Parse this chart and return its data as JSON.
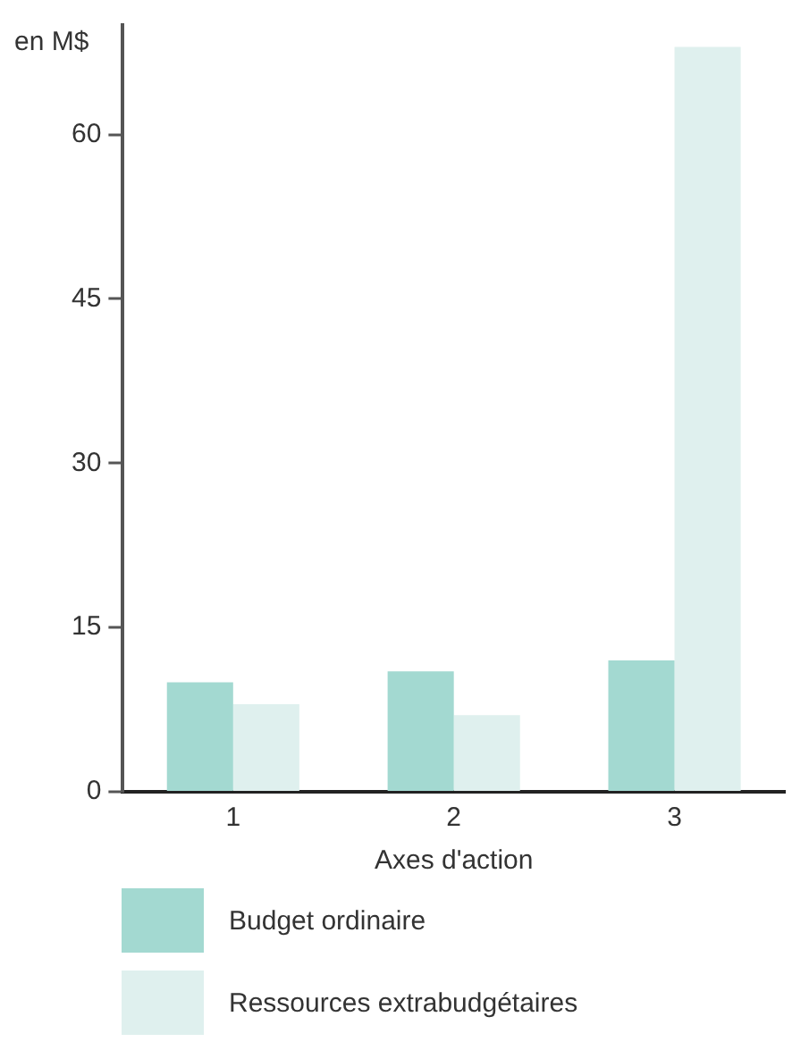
{
  "chart_data": {
    "type": "bar",
    "ylabel": "en M$",
    "xlabel": "Axes d'action",
    "categories": [
      "1",
      "2",
      "3"
    ],
    "series": [
      {
        "name": "Budget ordinaire",
        "color": "#a3d9d1",
        "values": [
          10,
          11,
          12
        ]
      },
      {
        "name": "Ressources extrabudgétaires",
        "color": "#dff0ee",
        "values": [
          8,
          7,
          68
        ]
      }
    ],
    "ylim": [
      0,
      70
    ],
    "yticks": [
      0,
      15,
      30,
      45,
      60
    ],
    "grid": false,
    "legend": "bottom"
  }
}
